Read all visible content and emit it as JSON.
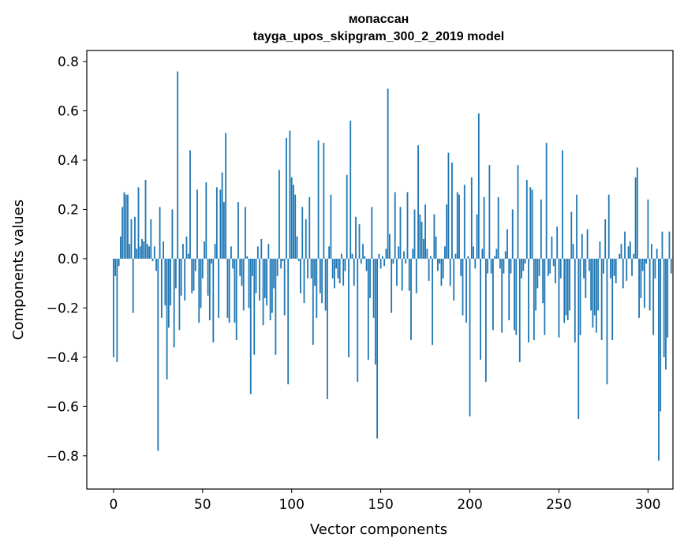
{
  "chart_data": {
    "type": "bar",
    "title": "мопассан",
    "subtitle": "tayga_upos_skipgram_300_2_2019 model",
    "xlabel": "Vector components",
    "ylabel": "Components values",
    "xlim": [
      -15,
      314
    ],
    "ylim": [
      -0.935,
      0.845
    ],
    "xticks": [
      0,
      50,
      100,
      150,
      200,
      250,
      300
    ],
    "xtick_labels": [
      "0",
      "50",
      "100",
      "150",
      "200",
      "250",
      "300"
    ],
    "yticks": [
      -0.8,
      -0.6,
      -0.4,
      -0.2,
      0.0,
      0.2,
      0.4,
      0.6,
      0.8
    ],
    "ytick_labels": [
      "−0.8",
      "−0.6",
      "−0.4",
      "−0.2",
      "0.0",
      "0.2",
      "0.4",
      "0.6",
      "0.8"
    ],
    "grid": false,
    "bar_color": "#1f77b4",
    "x_start": 0,
    "values": [
      -0.4,
      -0.07,
      -0.42,
      -0.03,
      0.09,
      0.21,
      0.27,
      0.26,
      0.26,
      0.06,
      0.16,
      -0.22,
      0.17,
      0.04,
      0.29,
      0.05,
      0.08,
      0.07,
      0.32,
      0.06,
      0.05,
      0.16,
      -0.01,
      0.05,
      -0.05,
      -0.78,
      0.21,
      -0.24,
      0.07,
      -0.19,
      -0.49,
      -0.28,
      -0.19,
      0.2,
      -0.36,
      -0.12,
      0.76,
      -0.29,
      -0.15,
      0.06,
      -0.17,
      0.09,
      0.02,
      0.44,
      -0.14,
      -0.13,
      -0.05,
      0.28,
      -0.26,
      -0.2,
      -0.08,
      0.07,
      0.31,
      -0.15,
      -0.25,
      -0.02,
      -0.34,
      0.06,
      0.29,
      -0.24,
      0.28,
      0.35,
      0.23,
      0.51,
      -0.24,
      -0.26,
      0.05,
      -0.04,
      -0.26,
      -0.33,
      0.23,
      -0.07,
      -0.11,
      -0.21,
      0.21,
      0.01,
      -0.2,
      -0.55,
      -0.07,
      -0.39,
      -0.14,
      0.05,
      -0.17,
      0.08,
      -0.27,
      -0.16,
      -0.19,
      0.06,
      -0.25,
      -0.22,
      -0.12,
      -0.39,
      -0.07,
      0.36,
      -0.04,
      -0.01,
      -0.23,
      0.49,
      -0.51,
      0.52,
      0.33,
      0.3,
      0.26,
      0.09,
      -0.01,
      -0.14,
      0.21,
      -0.18,
      0.16,
      -0.08,
      0.25,
      -0.08,
      -0.35,
      -0.11,
      -0.24,
      0.48,
      -0.14,
      -0.18,
      0.47,
      -0.21,
      -0.57,
      0.05,
      0.26,
      -0.08,
      -0.12,
      -0.04,
      -0.08,
      -0.1,
      0.02,
      -0.11,
      -0.05,
      0.34,
      -0.4,
      0.56,
      0.02,
      -0.11,
      0.17,
      -0.5,
      0.14,
      -0.02,
      0.06,
      0.01,
      -0.05,
      -0.41,
      -0.16,
      0.21,
      -0.24,
      -0.43,
      -0.73,
      0.02,
      -0.04,
      0.01,
      -0.03,
      0.04,
      0.69,
      0.1,
      -0.22,
      -0.02,
      0.27,
      -0.11,
      0.05,
      0.21,
      -0.13,
      0.03,
      -0.02,
      0.27,
      -0.13,
      -0.33,
      0.04,
      0.2,
      -0.14,
      0.46,
      0.18,
      0.15,
      0.08,
      0.22,
      0.04,
      -0.09,
      0.01,
      -0.35,
      0.18,
      0.09,
      -0.05,
      -0.02,
      -0.11,
      -0.08,
      0.05,
      0.22,
      0.43,
      -0.11,
      0.39,
      -0.17,
      0.02,
      0.27,
      0.26,
      -0.07,
      -0.23,
      0.3,
      -0.26,
      0.01,
      -0.64,
      0.33,
      0.05,
      -0.04,
      0.18,
      0.59,
      -0.41,
      0.04,
      0.25,
      -0.5,
      -0.06,
      0.38,
      -0.06,
      -0.29,
      0.01,
      0.04,
      0.25,
      -0.04,
      -0.3,
      -0.06,
      0.03,
      0.12,
      -0.25,
      -0.06,
      0.2,
      -0.29,
      -0.31,
      0.38,
      -0.42,
      -0.08,
      -0.05,
      -0.02,
      0.32,
      -0.34,
      0.29,
      0.28,
      -0.33,
      -0.21,
      -0.12,
      -0.07,
      0.24,
      -0.18,
      -0.31,
      0.47,
      -0.07,
      -0.06,
      0.09,
      -0.03,
      -0.1,
      0.13,
      -0.32,
      -0.08,
      0.44,
      -0.26,
      -0.23,
      -0.25,
      -0.21,
      0.19,
      0.06,
      -0.34,
      0.26,
      -0.65,
      -0.31,
      0.1,
      -0.08,
      -0.16,
      0.12,
      -0.05,
      -0.21,
      -0.28,
      -0.23,
      -0.3,
      -0.21,
      0.07,
      -0.33,
      -0.06,
      0.16,
      -0.51,
      0.26,
      -0.08,
      -0.33,
      -0.07,
      -0.1,
      0.0,
      0.02,
      0.06,
      -0.12,
      0.11,
      -0.09,
      0.05,
      0.07,
      -0.07,
      0.02,
      0.33,
      0.37,
      -0.24,
      -0.16,
      -0.05,
      -0.2,
      -0.02,
      0.24,
      -0.21,
      0.06,
      -0.31,
      -0.08,
      0.04,
      -0.82,
      -0.62,
      0.11,
      -0.4,
      -0.45,
      -0.32,
      0.11,
      -0.06
    ]
  }
}
